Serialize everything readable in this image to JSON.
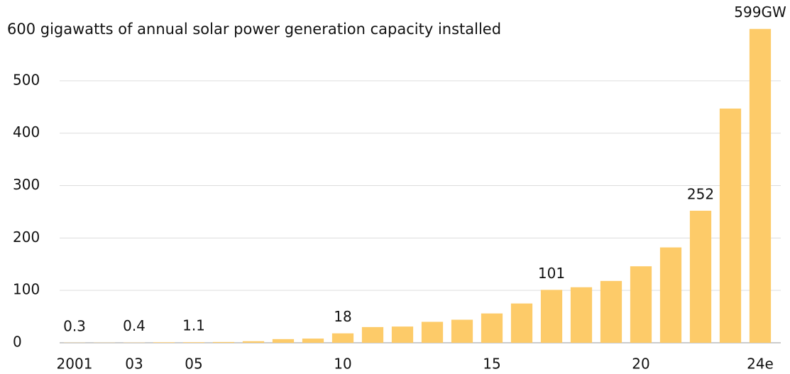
{
  "chart_data": {
    "type": "bar",
    "title": "600 gigawatts of annual solar power generation capacity installed",
    "categories": [
      "2001",
      null,
      "03",
      null,
      "05",
      null,
      null,
      null,
      null,
      "10",
      null,
      null,
      null,
      null,
      "15",
      null,
      null,
      null,
      null,
      "20",
      null,
      null,
      null,
      "24e"
    ],
    "values": [
      0.3,
      0.3,
      0.4,
      1,
      1.1,
      1.5,
      3,
      7,
      8,
      18,
      30,
      31,
      40,
      44,
      56,
      75,
      101,
      106,
      118,
      146,
      182,
      252,
      447,
      599
    ],
    "value_labels": [
      "0.3",
      null,
      "0.4",
      null,
      "1.1",
      null,
      null,
      null,
      null,
      "18",
      null,
      null,
      null,
      null,
      null,
      null,
      "101",
      null,
      null,
      null,
      null,
      "252",
      null,
      "599GW"
    ],
    "color": "#fdcb69",
    "ylim": [
      0,
      600
    ],
    "yticks": [
      0,
      100,
      200,
      300,
      400,
      500
    ],
    "grid": true
  }
}
